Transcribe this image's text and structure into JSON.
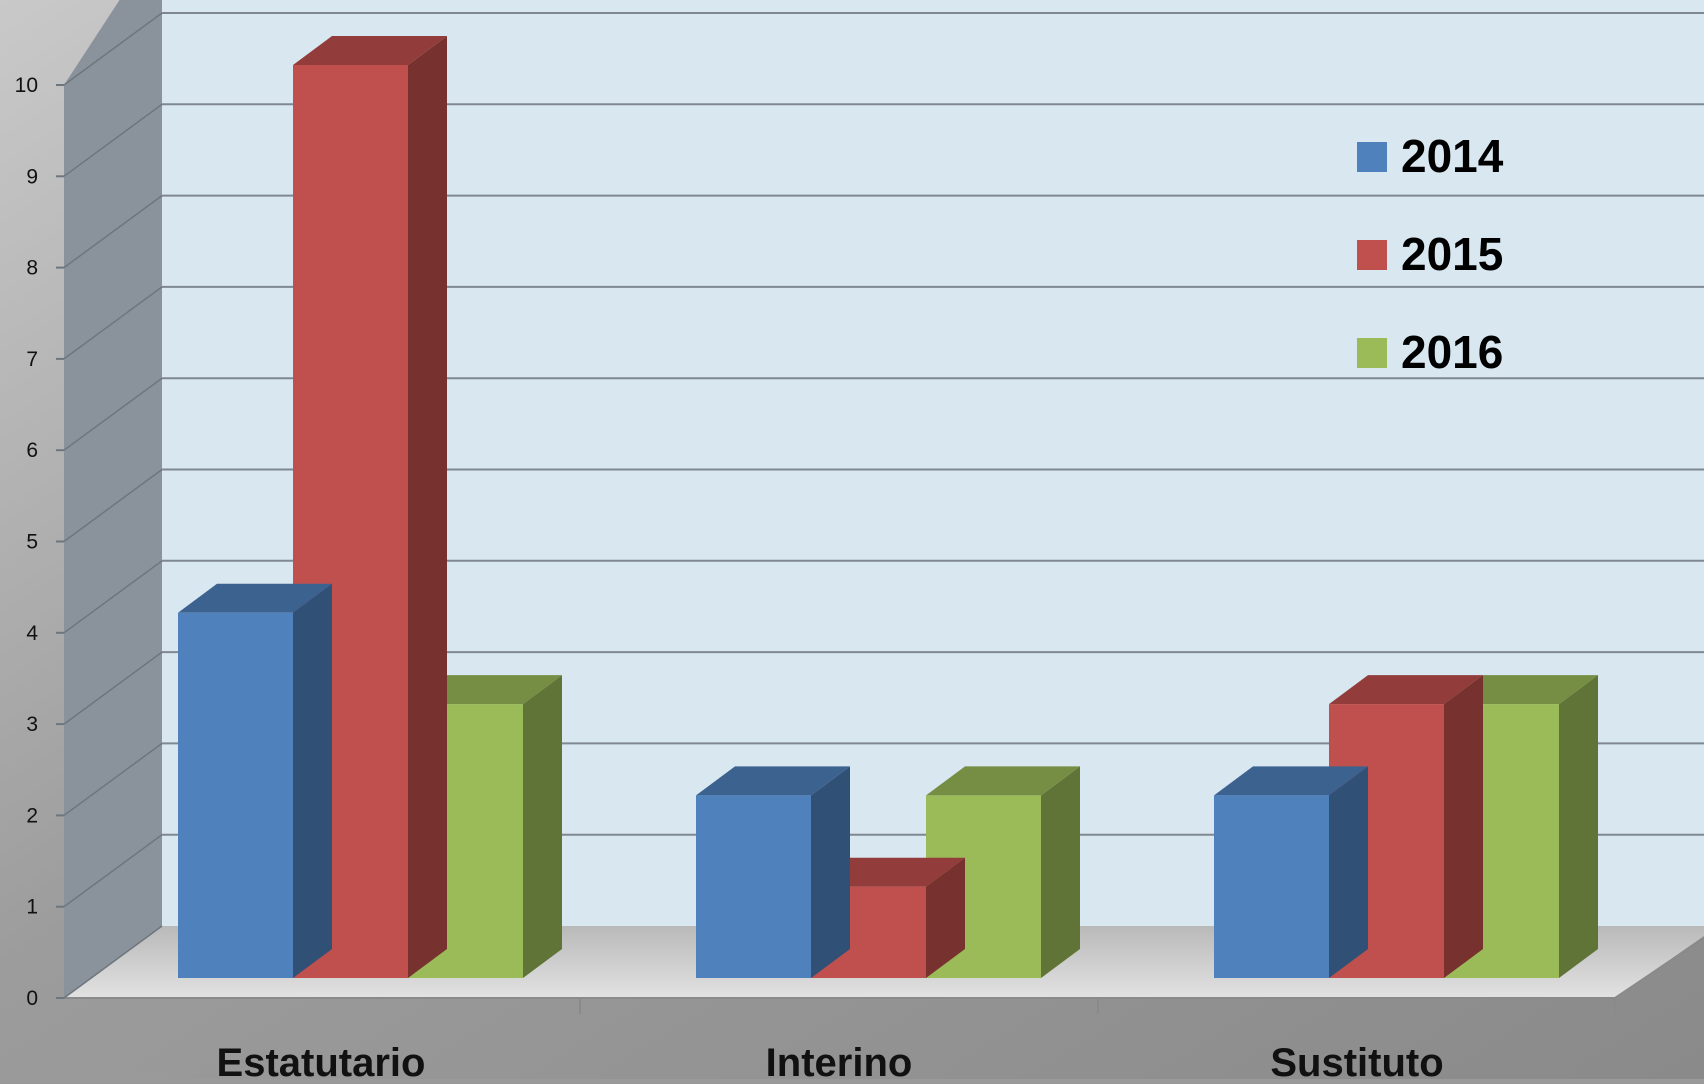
{
  "chart_data": {
    "type": "bar",
    "style": "3d-clustered-column",
    "categories": [
      "Estatutario",
      "Interino",
      "Sustituto"
    ],
    "series": [
      {
        "name": "2014",
        "color": "#4F81BD",
        "values": [
          4,
          2,
          2
        ]
      },
      {
        "name": "2015",
        "color": "#C0504D",
        "values": [
          10,
          1,
          3
        ]
      },
      {
        "name": "2016",
        "color": "#9BBB59",
        "values": [
          3,
          2,
          3
        ]
      }
    ],
    "title": "",
    "xlabel": "",
    "ylabel": "",
    "ylim": [
      0,
      10
    ],
    "yticks": [
      "0",
      "1",
      "2",
      "3",
      "4",
      "5",
      "6",
      "7",
      "8",
      "9",
      "10"
    ],
    "grid": true,
    "legend_position": "top-right",
    "colors": {
      "back_wall": "#D9E7F1",
      "side_wall": "#8A939C",
      "floor": "#C8C8C8",
      "gridline": "#7F8890"
    }
  }
}
